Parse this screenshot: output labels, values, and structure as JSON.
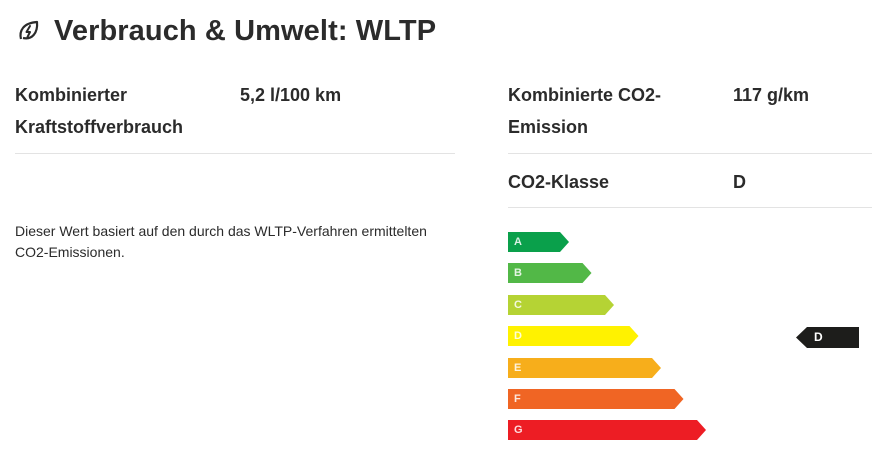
{
  "header": {
    "title": "Verbrauch & Umwelt: WLTP",
    "icon": "leaf-bolt-icon"
  },
  "consumption": {
    "label": "Kombinierter Kraftstoffverbrauch",
    "value": "5,2 l/100 km"
  },
  "emission": {
    "label": "Kombinierte CO2-Emission",
    "value": "117 g/km"
  },
  "co2_class": {
    "label": "CO2-Klasse",
    "value": "D"
  },
  "note": "Dieser Wert basiert auf den durch das WLTP-Verfahren ermittelten CO2-Emissionen.",
  "efficiency_scale": {
    "classes": [
      {
        "letter": "A",
        "color": "#0aa04b"
      },
      {
        "letter": "B",
        "color": "#52b847"
      },
      {
        "letter": "C",
        "color": "#b5d334"
      },
      {
        "letter": "D",
        "color": "#fff200"
      },
      {
        "letter": "E",
        "color": "#f7ae1b"
      },
      {
        "letter": "F",
        "color": "#f06524"
      },
      {
        "letter": "G",
        "color": "#ed1d24"
      }
    ],
    "current": "D",
    "marker_color": "#1d1d1b"
  }
}
